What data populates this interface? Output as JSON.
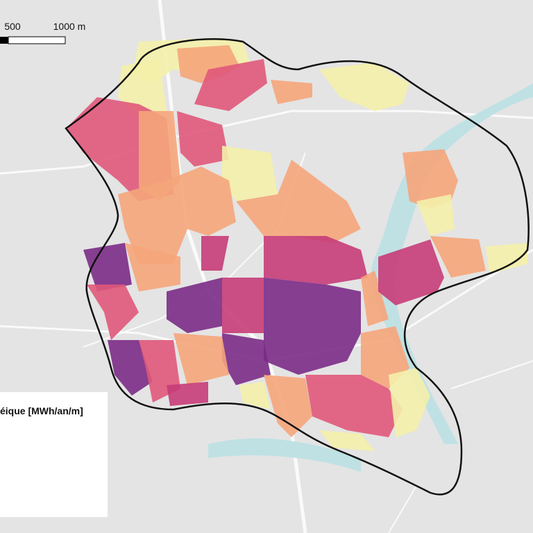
{
  "scale_bar": {
    "mid_label": "500",
    "end_label": "1000 m"
  },
  "legend": {
    "title": "éique [MWh/an/m]"
  }
}
